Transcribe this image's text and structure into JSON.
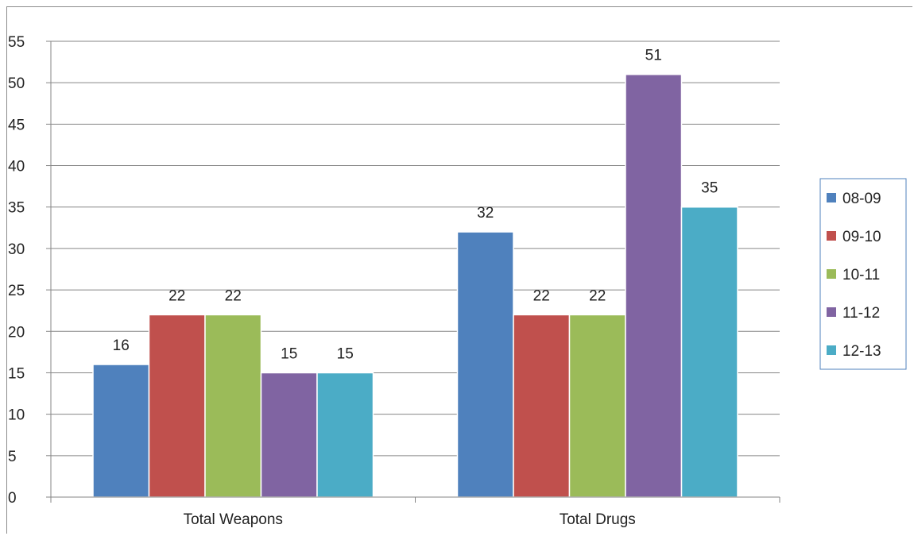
{
  "chart_data": {
    "type": "bar",
    "categories": [
      "Total Weapons",
      "Total Drugs"
    ],
    "series": [
      {
        "name": "08-09",
        "color": "#4f81bd",
        "values": [
          16,
          32
        ]
      },
      {
        "name": "09-10",
        "color": "#c0504d",
        "values": [
          22,
          22
        ]
      },
      {
        "name": "10-11",
        "color": "#9bbb59",
        "values": [
          22,
          22
        ]
      },
      {
        "name": "11-12",
        "color": "#8064a2",
        "values": [
          15,
          51
        ]
      },
      {
        "name": "12-13",
        "color": "#4bacc6",
        "values": [
          15,
          35
        ]
      }
    ],
    "yticks": [
      "0",
      "5",
      "10",
      "15",
      "20",
      "25",
      "30",
      "35",
      "40",
      "45",
      "50",
      "55"
    ],
    "ylim": [
      0,
      55
    ],
    "grid": true,
    "legend_position": "right",
    "data_labels": true
  }
}
